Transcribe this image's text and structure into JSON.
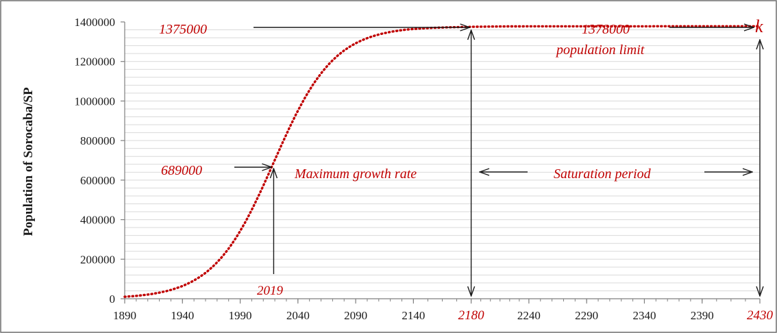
{
  "chart_data": {
    "type": "line",
    "title": "",
    "xlabel": "",
    "ylabel": "Population of Sorocaba/SP",
    "xlim": [
      1890,
      2430
    ],
    "ylim": [
      0,
      1400000
    ],
    "x_ticks": [
      1890,
      1940,
      1990,
      2040,
      2090,
      2140,
      2180,
      2240,
      2290,
      2340,
      2390,
      2430
    ],
    "x_tick_labels": [
      "1890",
      "1940",
      "1990",
      "2040",
      "2090",
      "2140",
      "2180",
      "2240",
      "2290",
      "2340",
      "2390",
      "2430"
    ],
    "highlighted_x_ticks": [
      "2180",
      "2430"
    ],
    "y_ticks": [
      0,
      200000,
      400000,
      600000,
      800000,
      1000000,
      1200000,
      1400000
    ],
    "y_tick_labels": [
      "0",
      "200000",
      "400000",
      "600000",
      "800000",
      "1000000",
      "1200000",
      "1400000"
    ],
    "grid": true,
    "legend": "none",
    "series": [
      {
        "style": "dotted",
        "color": "#c00000",
        "model": "logistic",
        "limit_k": 1378000,
        "inflection_x": 2019,
        "points": [
          [
            1890,
            10000
          ],
          [
            1910,
            25000
          ],
          [
            1930,
            55000
          ],
          [
            1950,
            120000
          ],
          [
            1970,
            240000
          ],
          [
            1990,
            420000
          ],
          [
            2019,
            689000
          ],
          [
            2040,
            900000
          ],
          [
            2060,
            1080000
          ],
          [
            2080,
            1200000
          ],
          [
            2100,
            1290000
          ],
          [
            2120,
            1335000
          ],
          [
            2140,
            1357000
          ],
          [
            2160,
            1369000
          ],
          [
            2180,
            1375000
          ],
          [
            2220,
            1377000
          ],
          [
            2260,
            1378000
          ],
          [
            2300,
            1378000
          ],
          [
            2340,
            1378000
          ],
          [
            2380,
            1378000
          ],
          [
            2430,
            1378000
          ]
        ]
      }
    ],
    "annotations": {
      "v_1375000": "1375000",
      "v_1378000": "1378000",
      "population_limit": "population limit",
      "k": "k",
      "v_689000": "689000",
      "max_growth": "Maximum growth rate",
      "saturation": "Saturation period",
      "year_2019": "2019"
    }
  }
}
